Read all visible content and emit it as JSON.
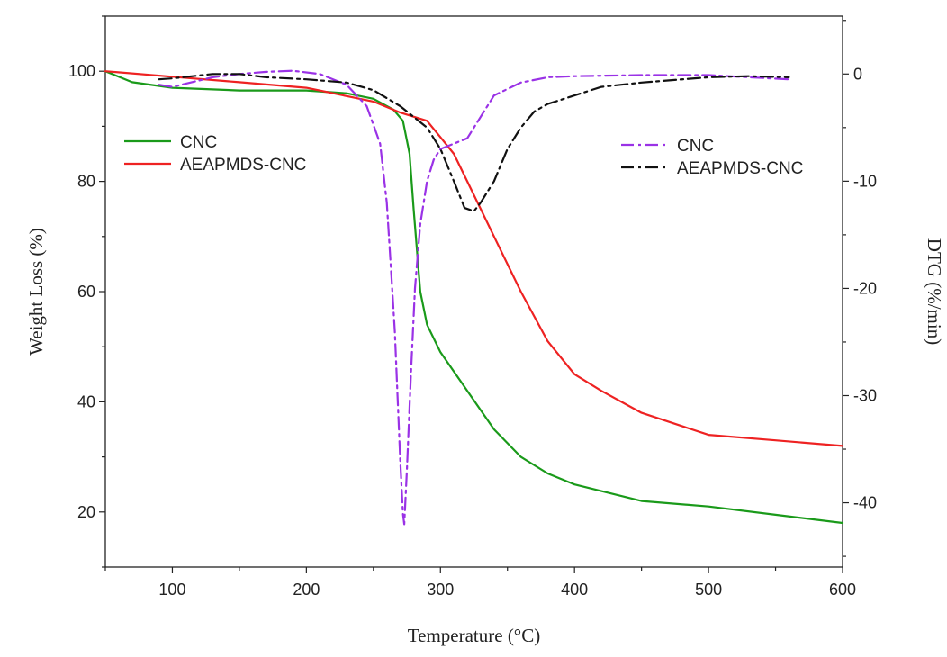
{
  "chart_data": {
    "type": "line",
    "title": "",
    "xlabel": "Temperature (°C)",
    "ylabel_left": "Weight Loss (%)",
    "ylabel_right": "DTG (%/min)",
    "xlim": [
      50,
      600
    ],
    "ylim_left": [
      10,
      110
    ],
    "ylim_right": [
      -46,
      5.4
    ],
    "xticks": [
      100,
      200,
      300,
      400,
      500,
      600
    ],
    "yticks_left": [
      20,
      40,
      60,
      80,
      100
    ],
    "yticks_right": [
      0,
      -10,
      -20,
      -30,
      -40
    ],
    "grid": false,
    "legend_left": {
      "placement": "upper-left",
      "entries": [
        "CNC",
        "AEAPMDS-CNC"
      ]
    },
    "legend_right": {
      "placement": "upper-right",
      "entries": [
        "CNC",
        "AEAPMDS-CNC"
      ]
    },
    "series": [
      {
        "name": "CNC",
        "axis": "left",
        "style": "solid",
        "color": "#1a9a1a",
        "x": [
          50,
          70,
          100,
          150,
          200,
          230,
          250,
          265,
          272,
          277,
          280,
          285,
          290,
          300,
          320,
          340,
          360,
          380,
          400,
          450,
          500,
          550,
          600
        ],
        "y": [
          100,
          98,
          97,
          96.5,
          96.5,
          96,
          95,
          93,
          91,
          85,
          75,
          60,
          54,
          49,
          42,
          35,
          30,
          27,
          25,
          22,
          21,
          19.5,
          18
        ]
      },
      {
        "name": "AEAPMDS-CNC",
        "axis": "left",
        "style": "solid",
        "color": "#ee2222",
        "x": [
          50,
          100,
          150,
          200,
          250,
          270,
          290,
          300,
          310,
          320,
          340,
          360,
          380,
          400,
          420,
          450,
          500,
          550,
          600
        ],
        "y": [
          100,
          99,
          98,
          97,
          94.5,
          92.5,
          91,
          88,
          85,
          80,
          70,
          60,
          51,
          45,
          42,
          38,
          34,
          33,
          32
        ]
      },
      {
        "name": "CNC",
        "axis": "right",
        "style": "dash-dot",
        "color": "#9a32e6",
        "x": [
          90,
          100,
          130,
          150,
          170,
          190,
          210,
          230,
          245,
          255,
          260,
          263,
          266,
          268,
          270,
          272,
          273,
          275,
          278,
          281,
          285,
          290,
          295,
          300,
          310,
          320,
          330,
          340,
          360,
          380,
          400,
          450,
          500,
          560
        ],
        "y": [
          -1.0,
          -1.2,
          -0.3,
          0,
          0.2,
          0.3,
          0,
          -1.0,
          -3.0,
          -6.5,
          -12,
          -18,
          -24,
          -30,
          -36,
          -41,
          -42,
          -37,
          -28,
          -20,
          -14,
          -10,
          -8,
          -7,
          -6.5,
          -6,
          -4,
          -2,
          -0.8,
          -0.3,
          -0.2,
          -0.1,
          -0.1,
          -0.5
        ]
      },
      {
        "name": "AEAPMDS-CNC",
        "axis": "right",
        "style": "dash-dot",
        "color": "#111111",
        "x": [
          90,
          100,
          130,
          150,
          170,
          200,
          230,
          250,
          270,
          280,
          290,
          300,
          310,
          318,
          325,
          330,
          340,
          350,
          360,
          370,
          380,
          400,
          420,
          450,
          500,
          530,
          560
        ],
        "y": [
          -0.5,
          -0.4,
          0,
          0,
          -0.3,
          -0.5,
          -0.8,
          -1.5,
          -3.0,
          -4.0,
          -5.0,
          -7.0,
          -10.0,
          -12.5,
          -12.8,
          -12.0,
          -10.0,
          -7.0,
          -5.0,
          -3.5,
          -2.8,
          -2.0,
          -1.2,
          -0.8,
          -0.3,
          -0.2,
          -0.3
        ]
      }
    ]
  }
}
